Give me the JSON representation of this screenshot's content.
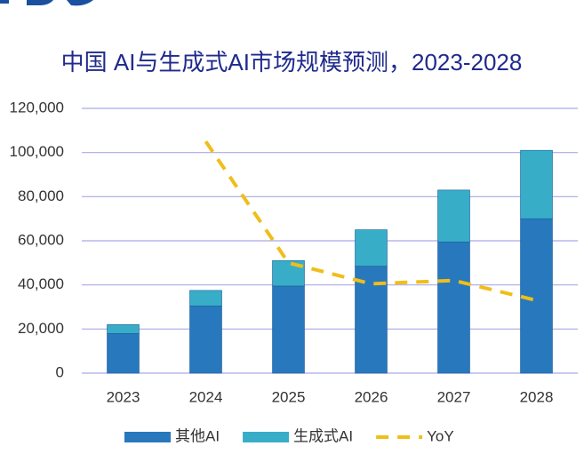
{
  "chart_data": {
    "type": "stacked-bar-line",
    "title": "中国 AI与生成式AI市场规模预测，2023-2028",
    "categories": [
      "2023",
      "2024",
      "2025",
      "2026",
      "2027",
      "2028"
    ],
    "series": [
      {
        "name": "其他AI",
        "color": "#2878bd",
        "kind": "bar",
        "values": [
          18000,
          30500,
          39500,
          48500,
          59500,
          70000
        ]
      },
      {
        "name": "生成式AI",
        "color": "#38adc8",
        "kind": "bar",
        "values": [
          4000,
          7000,
          11500,
          16500,
          23500,
          31000
        ]
      },
      {
        "name": "YoY",
        "color": "#f0be1a",
        "kind": "line",
        "values": [
          null,
          105000,
          50000,
          40500,
          42000,
          33000
        ]
      }
    ],
    "ylim": [
      0,
      120000
    ],
    "yticks": [
      0,
      {
        "value": 20000,
        "label": "20,000"
      },
      {
        "value": 40000,
        "label": "40,000"
      },
      {
        "value": 60000,
        "label": "60,000"
      },
      {
        "value": 80000,
        "label": "80,000"
      },
      {
        "value": 100000,
        "label": "100,000"
      },
      {
        "value": 120000,
        "label": "120,000"
      }
    ],
    "grid": true,
    "legend": "bottom"
  }
}
